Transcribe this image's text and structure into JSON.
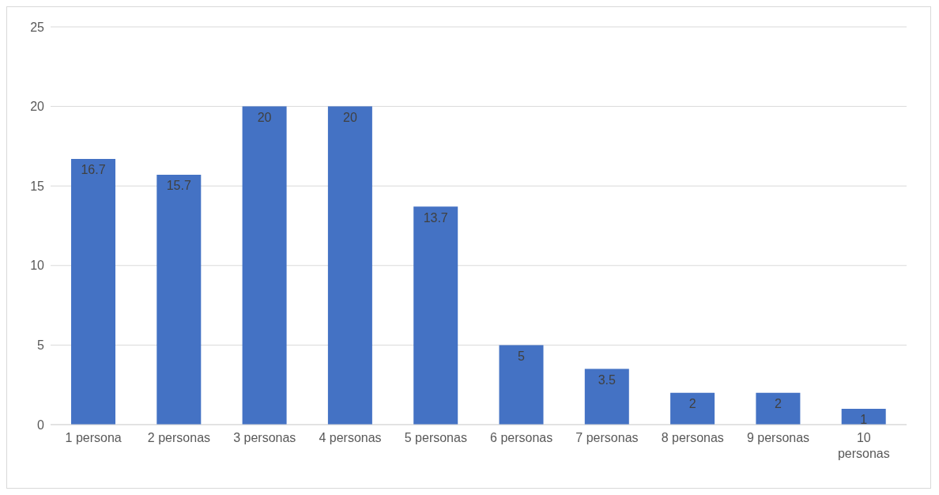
{
  "chart_data": {
    "type": "bar",
    "categories": [
      "1 persona",
      "2 personas",
      "3 personas",
      "4 personas",
      "5 personas",
      "6 personas",
      "7 personas",
      "8 personas",
      "9 personas",
      "10 personas"
    ],
    "values": [
      16.7,
      15.7,
      20,
      20,
      13.7,
      5,
      3.5,
      2,
      2,
      1
    ],
    "color": "#4472c4",
    "ylim": [
      0,
      25
    ],
    "yticks": [
      0,
      5,
      10,
      15,
      20,
      25
    ],
    "grid": "y",
    "data_labels": true
  }
}
